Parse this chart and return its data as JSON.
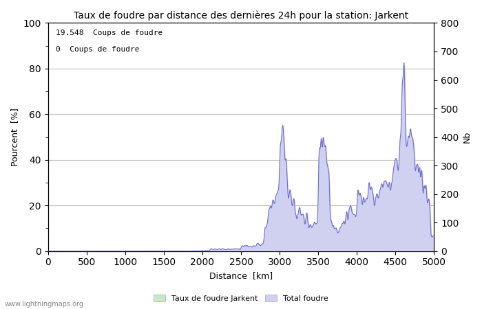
{
  "title": "Taux de foudre par distance des dernières 24h pour la station: Jarkent",
  "xlabel": "Distance  [km]",
  "ylabel_left": "Pourcent  [%]",
  "ylabel_right": "Nb",
  "annotation1": "19.548  Coups de foudre",
  "annotation2": "0  Coups de foudre",
  "xlim": [
    0,
    5000
  ],
  "ylim_left": [
    0,
    100
  ],
  "ylim_right": [
    0,
    800
  ],
  "xticks": [
    0,
    500,
    1000,
    1500,
    2000,
    2500,
    3000,
    3500,
    4000,
    4500,
    5000
  ],
  "yticks_left": [
    0,
    20,
    40,
    60,
    80,
    100
  ],
  "yticks_right": [
    0,
    100,
    200,
    300,
    400,
    500,
    600,
    700,
    800
  ],
  "legend_labels": [
    "Taux de foudre Jarkent",
    "Total foudre"
  ],
  "legend_colors_fill": [
    "#c8e6c8",
    "#d0d0f0"
  ],
  "legend_colors_line": [
    "#88bb88",
    "#8888cc"
  ],
  "watermark": "www.lightningmaps.org",
  "bg_color": "#ffffff",
  "grid_color": "#c0c0c0",
  "line_color": "#7070cc",
  "minor_tick_color": "#888888"
}
